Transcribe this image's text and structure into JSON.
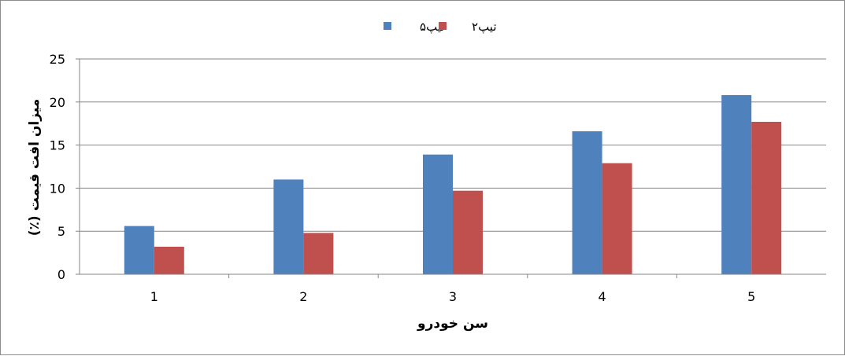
{
  "chart_data": {
    "type": "bar",
    "categories": [
      "1",
      "2",
      "3",
      "4",
      "5"
    ],
    "series": [
      {
        "name": "تیپ۵",
        "color": "#4f81bd",
        "values": [
          5.6,
          11.0,
          13.9,
          16.6,
          20.8
        ]
      },
      {
        "name": "تیپ۲",
        "color": "#c0504d",
        "values": [
          3.2,
          4.8,
          9.7,
          12.9,
          17.7
        ]
      }
    ],
    "xlabel": "سن خودرو",
    "ylabel": "میزان افت قیمت (٪)",
    "ylim": [
      0,
      25
    ],
    "yticks": [
      0,
      5,
      10,
      15,
      20,
      25
    ],
    "grid": true,
    "legend_position": "top"
  }
}
